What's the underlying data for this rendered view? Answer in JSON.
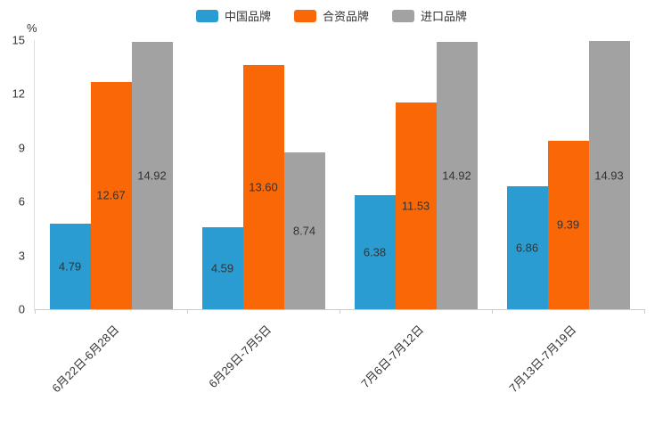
{
  "chart_data": {
    "type": "bar",
    "title": "",
    "unit_label": "%",
    "categories": [
      "6月22日-6月28日",
      "6月29日-7月5日",
      "7月6日-7月12日",
      "7月13日-7月19日"
    ],
    "series": [
      {
        "id": "china-brand",
        "name": "中国品牌",
        "color": "#2b9cd1",
        "values": [
          4.79,
          4.59,
          6.38,
          6.86
        ]
      },
      {
        "id": "joint-brand",
        "name": "合资品牌",
        "color": "#f96706",
        "values": [
          12.67,
          13.6,
          11.53,
          9.39
        ]
      },
      {
        "id": "import-brand",
        "name": "进口品牌",
        "color": "#a2a2a2",
        "values": [
          14.92,
          8.74,
          14.92,
          14.93
        ]
      }
    ],
    "ylim": [
      0,
      15
    ],
    "yticks": [
      0,
      3,
      6,
      9,
      12,
      15
    ],
    "grid": false,
    "legend_position": "top",
    "value_labels": "inside-center",
    "value_label_format": "2-decimals"
  }
}
